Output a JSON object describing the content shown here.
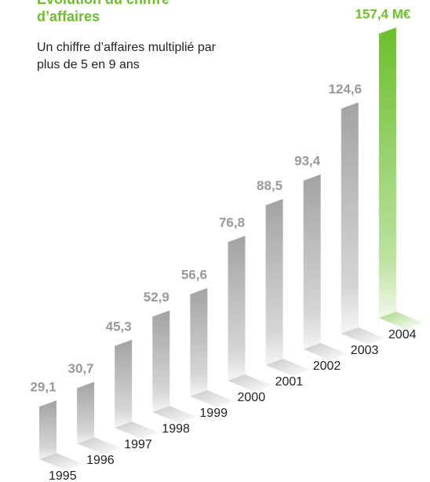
{
  "chart_data": {
    "type": "bar",
    "title": "Évolution du chiffre d’affaires",
    "subtitle": "Un chiffre d’affaires multiplié par plus de 5 en 9 ans",
    "categories": [
      "1995",
      "1996",
      "1997",
      "1998",
      "1999",
      "2000",
      "2001",
      "2002",
      "2003",
      "2004"
    ],
    "values": [
      29.1,
      30.7,
      45.3,
      52.9,
      56.6,
      76.8,
      88.5,
      93.4,
      124.6,
      157.4
    ],
    "value_labels": [
      "29,1",
      "30,7",
      "45,3",
      "52,9",
      "56,6",
      "76,8",
      "88,5",
      "93,4",
      "124,6",
      "157,4 M€"
    ],
    "colors": [
      "#a3a3a3",
      "#a3a3a3",
      "#a3a3a3",
      "#a3a3a3",
      "#a3a3a3",
      "#a3a3a3",
      "#a3a3a3",
      "#a3a3a3",
      "#a3a3a3",
      "#6cbf2c"
    ]
  }
}
